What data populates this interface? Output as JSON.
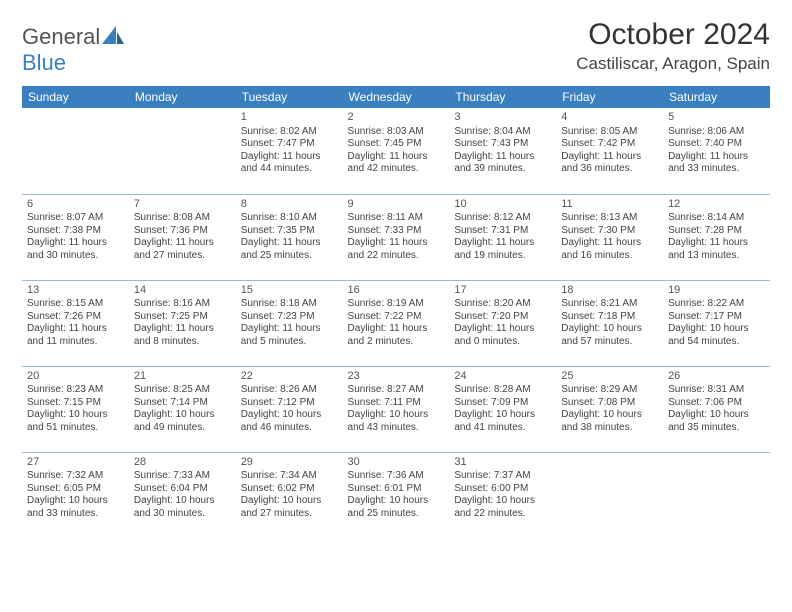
{
  "brand": {
    "part1": "General",
    "part2": "Blue"
  },
  "title": "October 2024",
  "location": "Castiliscar, Aragon, Spain",
  "colors": {
    "header_bg": "#3a7fbf",
    "header_text": "#ffffff",
    "rule": "#9db9d1",
    "body_text": "#444444",
    "title_text": "#333333"
  },
  "weekdays": [
    "Sunday",
    "Monday",
    "Tuesday",
    "Wednesday",
    "Thursday",
    "Friday",
    "Saturday"
  ],
  "weeks": [
    [
      null,
      null,
      {
        "n": "1",
        "sr": "Sunrise: 8:02 AM",
        "ss": "Sunset: 7:47 PM",
        "dl": "Daylight: 11 hours and 44 minutes."
      },
      {
        "n": "2",
        "sr": "Sunrise: 8:03 AM",
        "ss": "Sunset: 7:45 PM",
        "dl": "Daylight: 11 hours and 42 minutes."
      },
      {
        "n": "3",
        "sr": "Sunrise: 8:04 AM",
        "ss": "Sunset: 7:43 PM",
        "dl": "Daylight: 11 hours and 39 minutes."
      },
      {
        "n": "4",
        "sr": "Sunrise: 8:05 AM",
        "ss": "Sunset: 7:42 PM",
        "dl": "Daylight: 11 hours and 36 minutes."
      },
      {
        "n": "5",
        "sr": "Sunrise: 8:06 AM",
        "ss": "Sunset: 7:40 PM",
        "dl": "Daylight: 11 hours and 33 minutes."
      }
    ],
    [
      {
        "n": "6",
        "sr": "Sunrise: 8:07 AM",
        "ss": "Sunset: 7:38 PM",
        "dl": "Daylight: 11 hours and 30 minutes."
      },
      {
        "n": "7",
        "sr": "Sunrise: 8:08 AM",
        "ss": "Sunset: 7:36 PM",
        "dl": "Daylight: 11 hours and 27 minutes."
      },
      {
        "n": "8",
        "sr": "Sunrise: 8:10 AM",
        "ss": "Sunset: 7:35 PM",
        "dl": "Daylight: 11 hours and 25 minutes."
      },
      {
        "n": "9",
        "sr": "Sunrise: 8:11 AM",
        "ss": "Sunset: 7:33 PM",
        "dl": "Daylight: 11 hours and 22 minutes."
      },
      {
        "n": "10",
        "sr": "Sunrise: 8:12 AM",
        "ss": "Sunset: 7:31 PM",
        "dl": "Daylight: 11 hours and 19 minutes."
      },
      {
        "n": "11",
        "sr": "Sunrise: 8:13 AM",
        "ss": "Sunset: 7:30 PM",
        "dl": "Daylight: 11 hours and 16 minutes."
      },
      {
        "n": "12",
        "sr": "Sunrise: 8:14 AM",
        "ss": "Sunset: 7:28 PM",
        "dl": "Daylight: 11 hours and 13 minutes."
      }
    ],
    [
      {
        "n": "13",
        "sr": "Sunrise: 8:15 AM",
        "ss": "Sunset: 7:26 PM",
        "dl": "Daylight: 11 hours and 11 minutes."
      },
      {
        "n": "14",
        "sr": "Sunrise: 8:16 AM",
        "ss": "Sunset: 7:25 PM",
        "dl": "Daylight: 11 hours and 8 minutes."
      },
      {
        "n": "15",
        "sr": "Sunrise: 8:18 AM",
        "ss": "Sunset: 7:23 PM",
        "dl": "Daylight: 11 hours and 5 minutes."
      },
      {
        "n": "16",
        "sr": "Sunrise: 8:19 AM",
        "ss": "Sunset: 7:22 PM",
        "dl": "Daylight: 11 hours and 2 minutes."
      },
      {
        "n": "17",
        "sr": "Sunrise: 8:20 AM",
        "ss": "Sunset: 7:20 PM",
        "dl": "Daylight: 11 hours and 0 minutes."
      },
      {
        "n": "18",
        "sr": "Sunrise: 8:21 AM",
        "ss": "Sunset: 7:18 PM",
        "dl": "Daylight: 10 hours and 57 minutes."
      },
      {
        "n": "19",
        "sr": "Sunrise: 8:22 AM",
        "ss": "Sunset: 7:17 PM",
        "dl": "Daylight: 10 hours and 54 minutes."
      }
    ],
    [
      {
        "n": "20",
        "sr": "Sunrise: 8:23 AM",
        "ss": "Sunset: 7:15 PM",
        "dl": "Daylight: 10 hours and 51 minutes."
      },
      {
        "n": "21",
        "sr": "Sunrise: 8:25 AM",
        "ss": "Sunset: 7:14 PM",
        "dl": "Daylight: 10 hours and 49 minutes."
      },
      {
        "n": "22",
        "sr": "Sunrise: 8:26 AM",
        "ss": "Sunset: 7:12 PM",
        "dl": "Daylight: 10 hours and 46 minutes."
      },
      {
        "n": "23",
        "sr": "Sunrise: 8:27 AM",
        "ss": "Sunset: 7:11 PM",
        "dl": "Daylight: 10 hours and 43 minutes."
      },
      {
        "n": "24",
        "sr": "Sunrise: 8:28 AM",
        "ss": "Sunset: 7:09 PM",
        "dl": "Daylight: 10 hours and 41 minutes."
      },
      {
        "n": "25",
        "sr": "Sunrise: 8:29 AM",
        "ss": "Sunset: 7:08 PM",
        "dl": "Daylight: 10 hours and 38 minutes."
      },
      {
        "n": "26",
        "sr": "Sunrise: 8:31 AM",
        "ss": "Sunset: 7:06 PM",
        "dl": "Daylight: 10 hours and 35 minutes."
      }
    ],
    [
      {
        "n": "27",
        "sr": "Sunrise: 7:32 AM",
        "ss": "Sunset: 6:05 PM",
        "dl": "Daylight: 10 hours and 33 minutes."
      },
      {
        "n": "28",
        "sr": "Sunrise: 7:33 AM",
        "ss": "Sunset: 6:04 PM",
        "dl": "Daylight: 10 hours and 30 minutes."
      },
      {
        "n": "29",
        "sr": "Sunrise: 7:34 AM",
        "ss": "Sunset: 6:02 PM",
        "dl": "Daylight: 10 hours and 27 minutes."
      },
      {
        "n": "30",
        "sr": "Sunrise: 7:36 AM",
        "ss": "Sunset: 6:01 PM",
        "dl": "Daylight: 10 hours and 25 minutes."
      },
      {
        "n": "31",
        "sr": "Sunrise: 7:37 AM",
        "ss": "Sunset: 6:00 PM",
        "dl": "Daylight: 10 hours and 22 minutes."
      },
      null,
      null
    ]
  ]
}
